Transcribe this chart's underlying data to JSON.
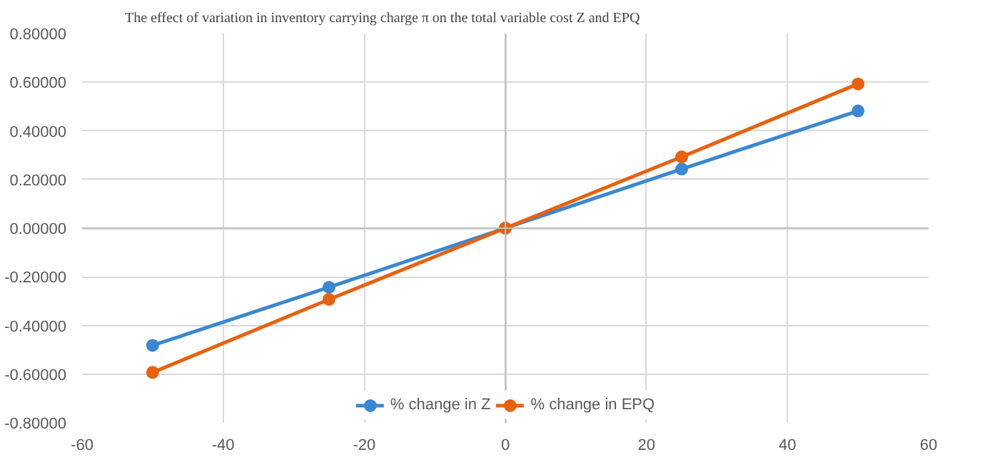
{
  "chart_data": {
    "type": "line",
    "title": "The effect of variation in inventory carrying charge π on the total variable cost Z and EPQ",
    "x": [
      -50,
      -25,
      0,
      25,
      50
    ],
    "series": [
      {
        "name": "% change in Z",
        "color": "#3a87d4",
        "values": [
          -0.482,
          -0.243,
          0,
          0.243,
          0.482
        ]
      },
      {
        "name": "% change in EPQ",
        "color": "#e8610e",
        "values": [
          -0.593,
          -0.293,
          0,
          0.293,
          0.593
        ]
      }
    ],
    "xlim": [
      -60,
      60
    ],
    "xticks": [
      -60,
      -40,
      -20,
      0,
      20,
      40,
      60
    ],
    "ylim": [
      -0.8,
      0.8
    ],
    "yticks": [
      {
        "value": -0.8,
        "label": "-0.80000"
      },
      {
        "value": -0.6,
        "label": "-0.60000"
      },
      {
        "value": -0.4,
        "label": "-0.40000"
      },
      {
        "value": -0.2,
        "label": "-0.20000"
      },
      {
        "value": 0,
        "label": "0.00000"
      },
      {
        "value": 0.2,
        "label": "0.20000"
      },
      {
        "value": 0.4,
        "label": "0.40000"
      },
      {
        "value": 0.6,
        "label": "0.60000"
      },
      {
        "value": 0.8,
        "label": "0.80000"
      }
    ],
    "grid": true,
    "legend": "bottom",
    "marker": "circle",
    "line_style": "solid"
  }
}
